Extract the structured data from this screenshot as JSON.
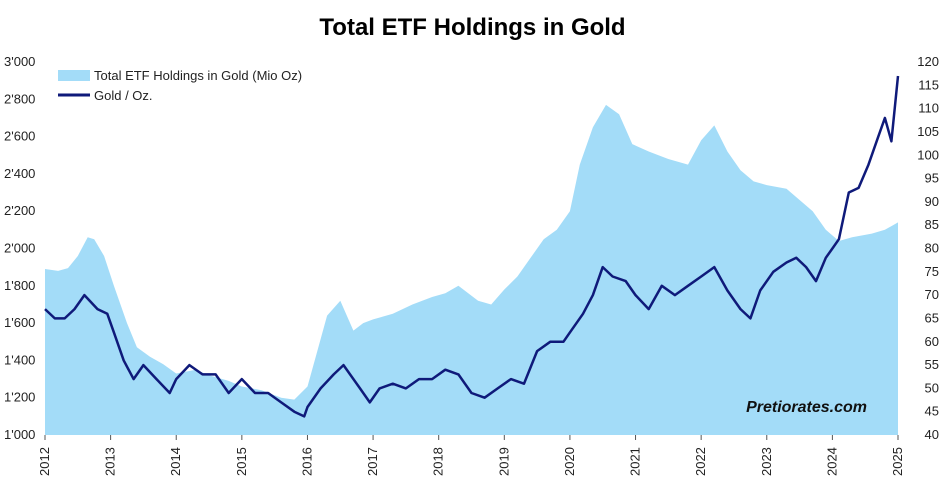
{
  "chart_data": {
    "type": "area",
    "title": "Total ETF Holdings in Gold",
    "watermark": "Pretiorates.com",
    "x_ticks": [
      "2012",
      "2013",
      "2014",
      "2015",
      "2016",
      "2017",
      "2018",
      "2019",
      "2020",
      "2021",
      "2022",
      "2023",
      "2024",
      "2025"
    ],
    "y_left": {
      "min": 1000,
      "max": 3000,
      "step": 200,
      "ticks": [
        "1'000",
        "1'200",
        "1'400",
        "1'600",
        "1'800",
        "2'000",
        "2'200",
        "2'400",
        "2'600",
        "2'800",
        "3'000"
      ]
    },
    "y_right": {
      "min": 40,
      "max": 120,
      "step": 5,
      "ticks": [
        "40",
        "45",
        "50",
        "55",
        "60",
        "65",
        "70",
        "75",
        "80",
        "85",
        "90",
        "95",
        "100",
        "105",
        "110",
        "115",
        "120"
      ]
    },
    "colors": {
      "area": "#a3dcf8",
      "line": "#0f1a7a"
    },
    "series": [
      {
        "name": "Total ETF Holdings in Gold (Mio Oz)",
        "axis": "left",
        "kind": "area",
        "points": [
          [
            2012.0,
            1890
          ],
          [
            2012.2,
            1880
          ],
          [
            2012.35,
            1895
          ],
          [
            2012.5,
            1960
          ],
          [
            2012.65,
            2060
          ],
          [
            2012.75,
            2050
          ],
          [
            2012.9,
            1960
          ],
          [
            2013.05,
            1800
          ],
          [
            2013.25,
            1600
          ],
          [
            2013.4,
            1470
          ],
          [
            2013.6,
            1420
          ],
          [
            2013.8,
            1380
          ],
          [
            2014.0,
            1330
          ],
          [
            2014.3,
            1350
          ],
          [
            2014.5,
            1320
          ],
          [
            2014.8,
            1290
          ],
          [
            2015.0,
            1260
          ],
          [
            2015.3,
            1240
          ],
          [
            2015.6,
            1200
          ],
          [
            2015.8,
            1190
          ],
          [
            2016.0,
            1260
          ],
          [
            2016.15,
            1450
          ],
          [
            2016.3,
            1640
          ],
          [
            2016.5,
            1720
          ],
          [
            2016.7,
            1560
          ],
          [
            2016.85,
            1600
          ],
          [
            2017.0,
            1620
          ],
          [
            2017.3,
            1650
          ],
          [
            2017.6,
            1700
          ],
          [
            2017.9,
            1740
          ],
          [
            2018.1,
            1760
          ],
          [
            2018.3,
            1800
          ],
          [
            2018.6,
            1720
          ],
          [
            2018.8,
            1700
          ],
          [
            2019.0,
            1780
          ],
          [
            2019.2,
            1850
          ],
          [
            2019.4,
            1950
          ],
          [
            2019.6,
            2050
          ],
          [
            2019.8,
            2100
          ],
          [
            2020.0,
            2200
          ],
          [
            2020.15,
            2450
          ],
          [
            2020.35,
            2650
          ],
          [
            2020.55,
            2770
          ],
          [
            2020.75,
            2720
          ],
          [
            2020.95,
            2560
          ],
          [
            2021.2,
            2520
          ],
          [
            2021.5,
            2480
          ],
          [
            2021.8,
            2450
          ],
          [
            2022.0,
            2580
          ],
          [
            2022.2,
            2660
          ],
          [
            2022.4,
            2520
          ],
          [
            2022.6,
            2420
          ],
          [
            2022.8,
            2360
          ],
          [
            2023.0,
            2340
          ],
          [
            2023.3,
            2320
          ],
          [
            2023.5,
            2260
          ],
          [
            2023.7,
            2200
          ],
          [
            2023.9,
            2100
          ],
          [
            2024.1,
            2040
          ],
          [
            2024.3,
            2060
          ],
          [
            2024.6,
            2080
          ],
          [
            2024.8,
            2100
          ],
          [
            2025.0,
            2140
          ]
        ]
      },
      {
        "name": "Gold / Oz.",
        "axis": "right",
        "kind": "line",
        "points": [
          [
            2012.0,
            67
          ],
          [
            2012.15,
            65
          ],
          [
            2012.3,
            65
          ],
          [
            2012.45,
            67
          ],
          [
            2012.6,
            70
          ],
          [
            2012.8,
            67
          ],
          [
            2012.95,
            66
          ],
          [
            2013.05,
            62
          ],
          [
            2013.2,
            56
          ],
          [
            2013.35,
            52
          ],
          [
            2013.5,
            55
          ],
          [
            2013.7,
            52
          ],
          [
            2013.9,
            49
          ],
          [
            2014.0,
            52
          ],
          [
            2014.2,
            55
          ],
          [
            2014.4,
            53
          ],
          [
            2014.6,
            53
          ],
          [
            2014.8,
            49
          ],
          [
            2015.0,
            52
          ],
          [
            2015.2,
            49
          ],
          [
            2015.4,
            49
          ],
          [
            2015.6,
            47
          ],
          [
            2015.8,
            45
          ],
          [
            2015.95,
            44
          ],
          [
            2016.0,
            46
          ],
          [
            2016.2,
            50
          ],
          [
            2016.4,
            53
          ],
          [
            2016.55,
            55
          ],
          [
            2016.8,
            50
          ],
          [
            2016.95,
            47
          ],
          [
            2017.1,
            50
          ],
          [
            2017.3,
            51
          ],
          [
            2017.5,
            50
          ],
          [
            2017.7,
            52
          ],
          [
            2017.9,
            52
          ],
          [
            2018.1,
            54
          ],
          [
            2018.3,
            53
          ],
          [
            2018.5,
            49
          ],
          [
            2018.7,
            48
          ],
          [
            2018.9,
            50
          ],
          [
            2019.1,
            52
          ],
          [
            2019.3,
            51
          ],
          [
            2019.5,
            58
          ],
          [
            2019.7,
            60
          ],
          [
            2019.9,
            60
          ],
          [
            2020.0,
            62
          ],
          [
            2020.2,
            66
          ],
          [
            2020.35,
            70
          ],
          [
            2020.5,
            76
          ],
          [
            2020.65,
            74
          ],
          [
            2020.85,
            73
          ],
          [
            2021.0,
            70
          ],
          [
            2021.2,
            67
          ],
          [
            2021.4,
            72
          ],
          [
            2021.6,
            70
          ],
          [
            2021.8,
            72
          ],
          [
            2022.0,
            74
          ],
          [
            2022.2,
            76
          ],
          [
            2022.4,
            71
          ],
          [
            2022.6,
            67
          ],
          [
            2022.75,
            65
          ],
          [
            2022.9,
            71
          ],
          [
            2023.1,
            75
          ],
          [
            2023.3,
            77
          ],
          [
            2023.45,
            78
          ],
          [
            2023.6,
            76
          ],
          [
            2023.75,
            73
          ],
          [
            2023.9,
            78
          ],
          [
            2024.0,
            80
          ],
          [
            2024.1,
            82
          ],
          [
            2024.25,
            92
          ],
          [
            2024.4,
            93
          ],
          [
            2024.55,
            98
          ],
          [
            2024.7,
            104
          ],
          [
            2024.8,
            108
          ],
          [
            2024.9,
            103
          ],
          [
            2025.0,
            117
          ]
        ]
      }
    ],
    "legend_placement": "top-left",
    "grid": false
  }
}
